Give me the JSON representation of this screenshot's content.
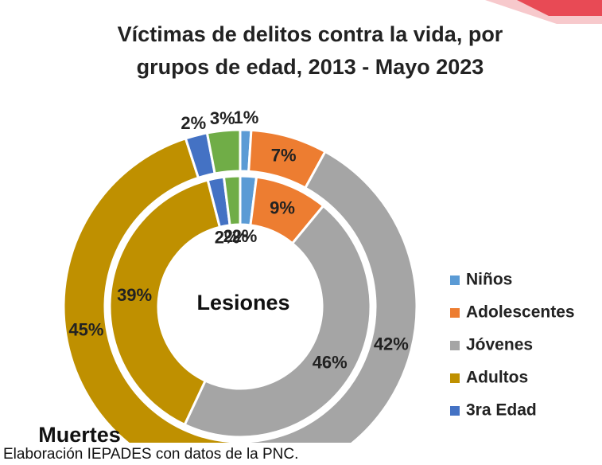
{
  "chart_data": {
    "type": "donut",
    "title": [
      "Víctimas de delitos contra la vida, por",
      "grupos de edad, 2013 - Mayo 2023"
    ],
    "categories": [
      "Niños",
      "Adolescentes",
      "Jóvenes",
      "Adultos",
      "3ra Edad",
      null
    ],
    "colors": [
      "#5b9bd5",
      "#ed7d31",
      "#a5a5a5",
      "#bf9000",
      "#4472c4",
      "#70ad47"
    ],
    "series": [
      {
        "name": "Muertes",
        "values": [
          1,
          7,
          42,
          45,
          2,
          3
        ],
        "value_labels": [
          "1%",
          "7%",
          "42%",
          "45%",
          "2%",
          "3%"
        ]
      },
      {
        "name": "Lesiones",
        "values": [
          2,
          9,
          46,
          39,
          2,
          2
        ],
        "value_labels": [
          "2%",
          "9%",
          "46%",
          "39%",
          "2%",
          "2%"
        ]
      }
    ],
    "source": "Elaboración IEPADES con datos de la PNC."
  }
}
